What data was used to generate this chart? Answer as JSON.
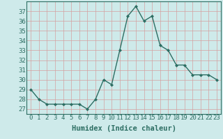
{
  "x": [
    0,
    1,
    2,
    3,
    4,
    5,
    6,
    7,
    8,
    9,
    10,
    11,
    12,
    13,
    14,
    15,
    16,
    17,
    18,
    19,
    20,
    21,
    22,
    23
  ],
  "y": [
    29,
    28,
    27.5,
    27.5,
    27.5,
    27.5,
    27.5,
    27,
    28,
    30,
    29.5,
    33,
    36.5,
    37.5,
    36,
    36.5,
    33.5,
    33,
    31.5,
    31.5,
    30.5,
    30.5,
    30.5,
    30
  ],
  "xlabel": "Humidex (Indice chaleur)",
  "ylim_min": 26.5,
  "ylim_max": 38.0,
  "xlim_min": -0.5,
  "xlim_max": 23.5,
  "yticks": [
    27,
    28,
    29,
    30,
    31,
    32,
    33,
    34,
    35,
    36,
    37
  ],
  "xticks": [
    0,
    1,
    2,
    3,
    4,
    5,
    6,
    7,
    8,
    9,
    10,
    11,
    12,
    13,
    14,
    15,
    16,
    17,
    18,
    19,
    20,
    21,
    22,
    23
  ],
  "line_color": "#2d6e63",
  "bg_color": "#ceeaea",
  "grid_major_color": "#b8d8d8",
  "grid_minor_color": "#d4ecec",
  "xlabel_fontsize": 7.5,
  "tick_fontsize": 6.5,
  "linewidth": 1.0,
  "markersize": 2.0
}
